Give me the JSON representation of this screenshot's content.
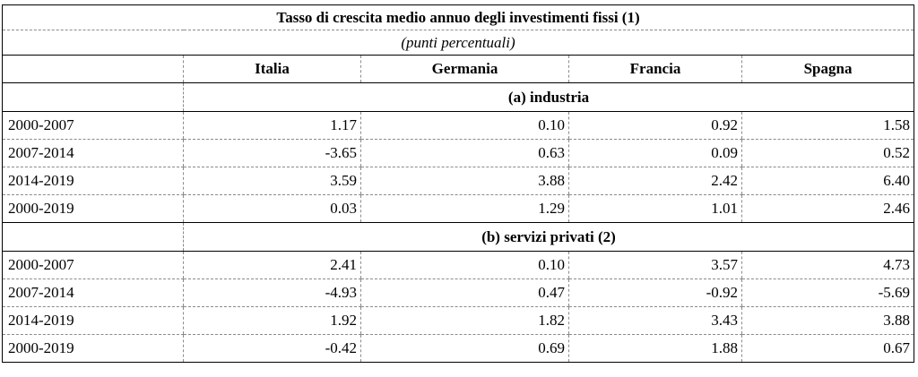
{
  "table": {
    "title": "Tasso di crescita medio annuo degli investimenti fissi (1)",
    "unit": "(punti percentuali)",
    "columns": [
      "",
      "Italia",
      "Germania",
      "Francia",
      "Spagna"
    ],
    "sections": [
      {
        "label": "(a) industria",
        "rows": [
          {
            "period": "2000-2007",
            "values": [
              "1.17",
              "0.10",
              "0.92",
              "1.58"
            ]
          },
          {
            "period": "2007-2014",
            "values": [
              "-3.65",
              "0.63",
              "0.09",
              "0.52"
            ]
          },
          {
            "period": "2014-2019",
            "values": [
              "3.59",
              "3.88",
              "2.42",
              "6.40"
            ]
          },
          {
            "period": "2000-2019",
            "values": [
              "0.03",
              "1.29",
              "1.01",
              "2.46"
            ]
          }
        ]
      },
      {
        "label": "(b) servizi privati (2)",
        "rows": [
          {
            "period": "2000-2007",
            "values": [
              "2.41",
              "0.10",
              "3.57",
              "4.73"
            ]
          },
          {
            "period": "2007-2014",
            "values": [
              "-4.93",
              "0.47",
              "-0.92",
              "-5.69"
            ]
          },
          {
            "period": "2014-2019",
            "values": [
              "1.92",
              "1.82",
              "3.43",
              "3.88"
            ]
          },
          {
            "period": "2000-2019",
            "values": [
              "-0.42",
              "0.69",
              "1.88",
              "0.67"
            ]
          }
        ]
      }
    ]
  }
}
